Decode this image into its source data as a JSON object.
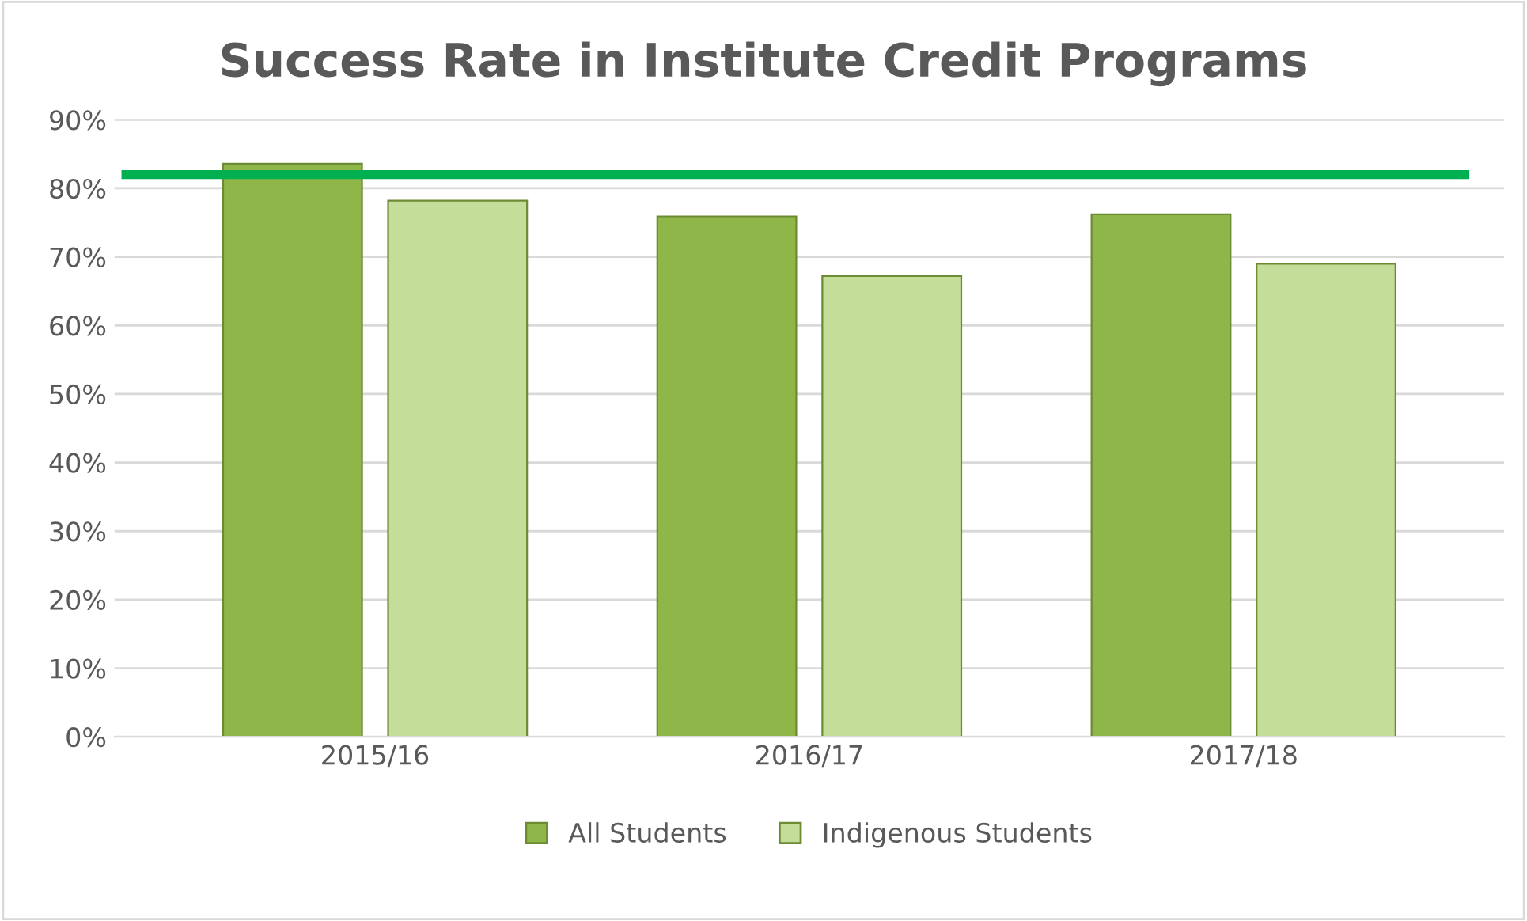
{
  "chart_data": {
    "type": "bar",
    "title": "Success Rate in Institute Credit Programs",
    "categories": [
      "2015/16",
      "2016/17",
      "2017/18"
    ],
    "series": [
      {
        "name": "All Students",
        "color": "#8fb649",
        "values": [
          83.6,
          75.9,
          76.2
        ]
      },
      {
        "name": "Indigenous Students",
        "color": "#c4dd98",
        "values": [
          78.2,
          67.2,
          69
        ]
      }
    ],
    "ylim": [
      0,
      90
    ],
    "yticks": [
      {
        "value": 0,
        "label": "0%"
      },
      {
        "value": 10,
        "label": "10%"
      },
      {
        "value": 20,
        "label": "20%"
      },
      {
        "value": 30,
        "label": "30%"
      },
      {
        "value": 40,
        "label": "40%"
      },
      {
        "value": 50,
        "label": "50%"
      },
      {
        "value": 60,
        "label": "60%"
      },
      {
        "value": 70,
        "label": "70%"
      },
      {
        "value": 80,
        "label": "80%"
      },
      {
        "value": 90,
        "label": "90%"
      }
    ],
    "ref_lines": [
      {
        "axis": "y",
        "value": 82,
        "color": "#00b050",
        "line_style": "solid"
      }
    ],
    "grid": "y",
    "legend": "bottom"
  }
}
